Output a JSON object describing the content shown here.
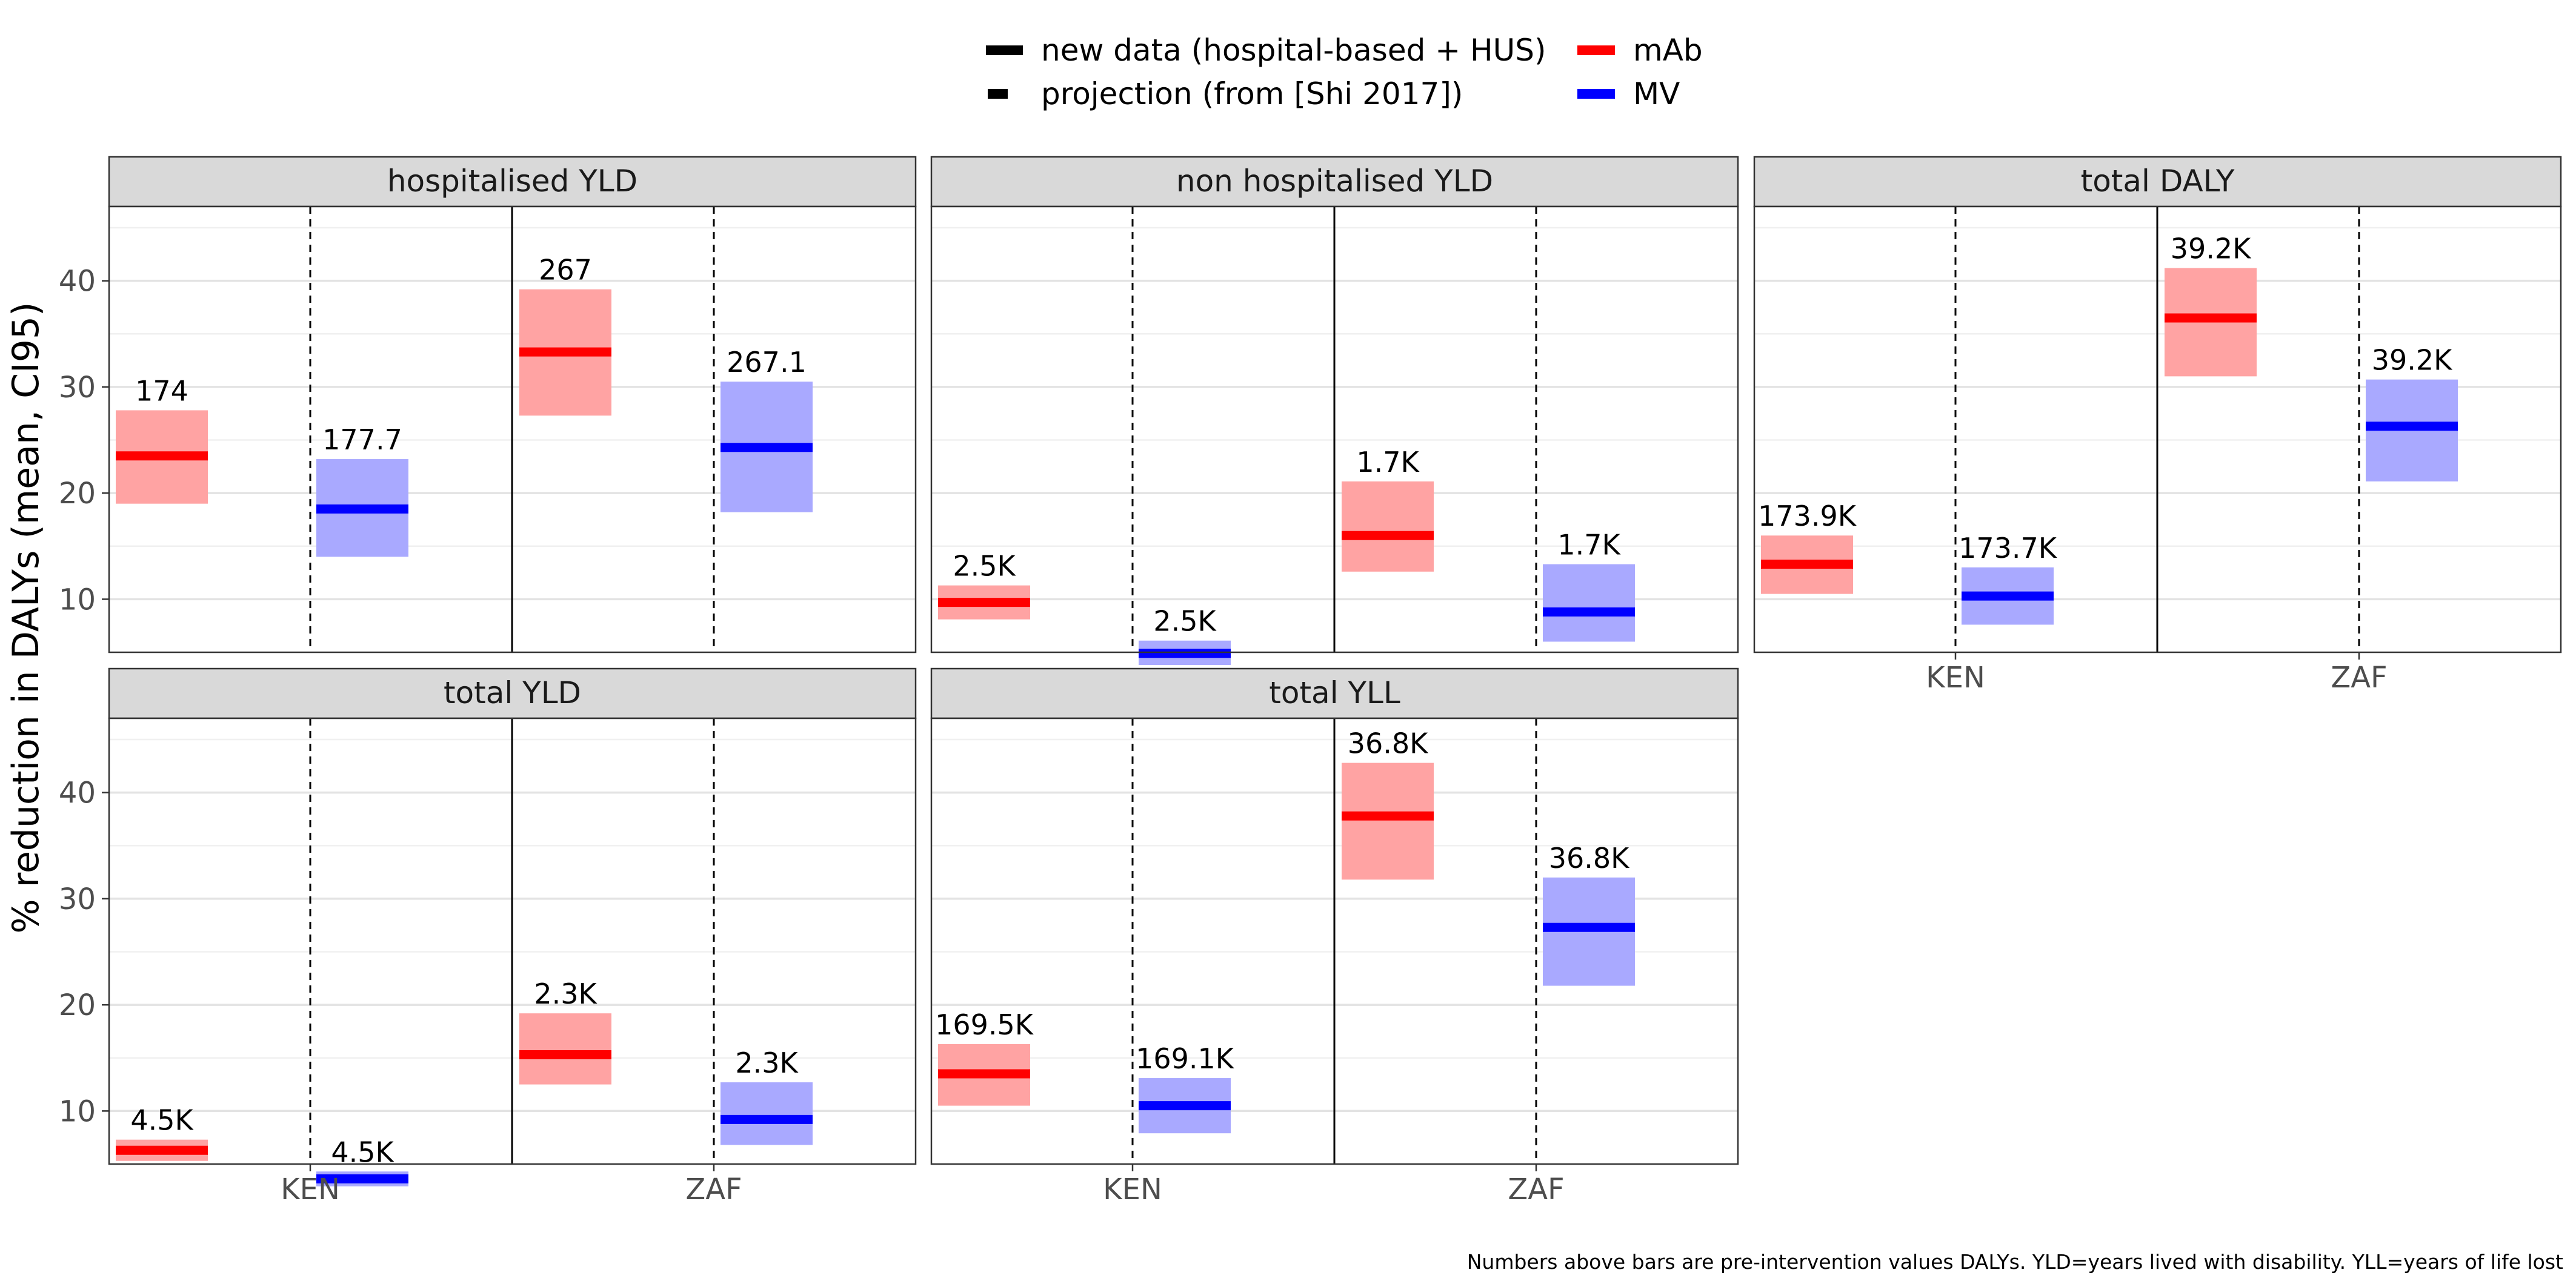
{
  "chart_data": {
    "type": "crossbar",
    "ylabel": "% reduction in DALYs (mean, CI95)",
    "categories": [
      "KEN",
      "ZAF"
    ],
    "yticks": [
      10,
      20,
      30,
      40
    ],
    "ylim": [
      5,
      47
    ],
    "grid": true,
    "legend": {
      "placement": "top",
      "linetypes": [
        {
          "label": "new data (hospital-based + HUS)",
          "style": "solid"
        },
        {
          "label": "projection (from [Shi 2017])",
          "style": "dashed"
        }
      ],
      "interventions": [
        {
          "label": "mAb",
          "color": "#ff0000"
        },
        {
          "label": "MV",
          "color": "#0000ff"
        }
      ]
    },
    "caption": "Numbers above bars are pre-intervention values DALYs. YLD=years lived with disability. YLL=years of life lost",
    "panels": [
      {
        "title": "hospitalised YLD",
        "bars": [
          {
            "country": "KEN",
            "intervention": "mAb",
            "mean": 23.5,
            "low": 19.0,
            "high": 27.8,
            "label": "174"
          },
          {
            "country": "KEN",
            "intervention": "MV",
            "mean": 18.5,
            "low": 14.0,
            "high": 23.2,
            "label": "177.7"
          },
          {
            "country": "ZAF",
            "intervention": "mAb",
            "mean": 33.3,
            "low": 27.3,
            "high": 39.2,
            "label": "267"
          },
          {
            "country": "ZAF",
            "intervention": "MV",
            "mean": 24.3,
            "low": 18.2,
            "high": 30.5,
            "label": "267.1"
          }
        ]
      },
      {
        "title": "non hospitalised YLD",
        "bars": [
          {
            "country": "KEN",
            "intervention": "mAb",
            "mean": 9.7,
            "low": 8.1,
            "high": 11.3,
            "label": "2.5K"
          },
          {
            "country": "KEN",
            "intervention": "MV",
            "mean": 4.9,
            "low": 3.8,
            "high": 6.1,
            "label": "2.5K"
          },
          {
            "country": "ZAF",
            "intervention": "mAb",
            "mean": 16.0,
            "low": 12.6,
            "high": 21.1,
            "label": "1.7K"
          },
          {
            "country": "ZAF",
            "intervention": "MV",
            "mean": 8.8,
            "low": 6.0,
            "high": 13.3,
            "label": "1.7K"
          }
        ]
      },
      {
        "title": "total DALY",
        "bars": [
          {
            "country": "KEN",
            "intervention": "mAb",
            "mean": 13.3,
            "low": 10.5,
            "high": 16.0,
            "label": "173.9K"
          },
          {
            "country": "KEN",
            "intervention": "MV",
            "mean": 10.3,
            "low": 7.6,
            "high": 13.0,
            "label": "173.7K"
          },
          {
            "country": "ZAF",
            "intervention": "mAb",
            "mean": 36.5,
            "low": 31.0,
            "high": 41.2,
            "label": "39.2K"
          },
          {
            "country": "ZAF",
            "intervention": "MV",
            "mean": 26.3,
            "low": 21.1,
            "high": 30.7,
            "label": "39.2K"
          }
        ]
      },
      {
        "title": "total YLD",
        "bars": [
          {
            "country": "KEN",
            "intervention": "mAb",
            "mean": 6.3,
            "low": 5.3,
            "high": 7.3,
            "label": "4.5K"
          },
          {
            "country": "KEN",
            "intervention": "MV",
            "mean": 3.6,
            "low": 2.9,
            "high": 4.3,
            "label": "4.5K"
          },
          {
            "country": "ZAF",
            "intervention": "mAb",
            "mean": 15.3,
            "low": 12.5,
            "high": 19.2,
            "label": "2.3K"
          },
          {
            "country": "ZAF",
            "intervention": "MV",
            "mean": 9.2,
            "low": 6.8,
            "high": 12.7,
            "label": "2.3K"
          }
        ]
      },
      {
        "title": "total YLL",
        "bars": [
          {
            "country": "KEN",
            "intervention": "mAb",
            "mean": 13.5,
            "low": 10.5,
            "high": 16.3,
            "label": "169.5K"
          },
          {
            "country": "KEN",
            "intervention": "MV",
            "mean": 10.5,
            "low": 7.9,
            "high": 13.1,
            "label": "169.1K"
          },
          {
            "country": "ZAF",
            "intervention": "mAb",
            "mean": 37.8,
            "low": 31.8,
            "high": 42.8,
            "label": "36.8K"
          },
          {
            "country": "ZAF",
            "intervention": "MV",
            "mean": 27.3,
            "low": 21.8,
            "high": 32.0,
            "label": "36.8K"
          }
        ]
      }
    ]
  }
}
